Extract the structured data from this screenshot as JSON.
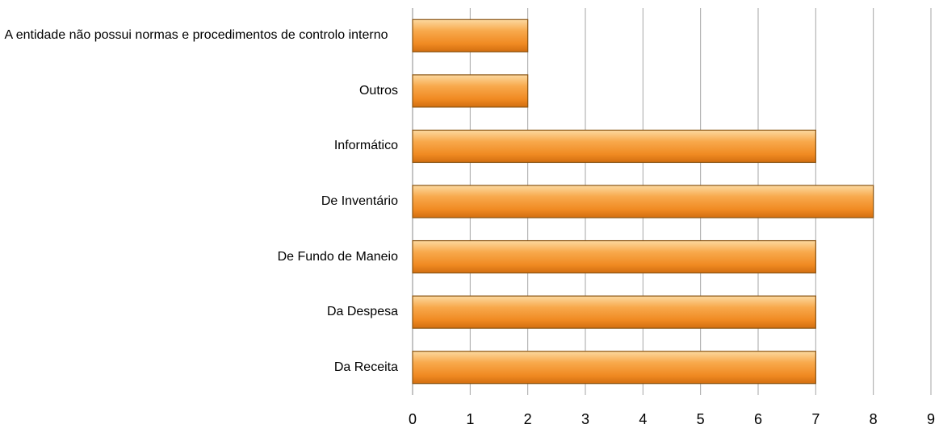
{
  "chart_data": {
    "type": "bar",
    "orientation": "horizontal",
    "categories": [
      "A entidade não possui normas e procedimentos de controlo interno",
      "Outros",
      "Informático",
      "De Inventário",
      "De Fundo de Maneio",
      "Da Despesa",
      "Da Receita"
    ],
    "values": [
      2,
      2,
      7,
      8,
      7,
      7,
      7
    ],
    "color": "#f28a1e",
    "xlim": [
      0,
      9
    ],
    "xticks": [
      0,
      1,
      2,
      3,
      4,
      5,
      6,
      7,
      8,
      9
    ],
    "grid": true
  }
}
